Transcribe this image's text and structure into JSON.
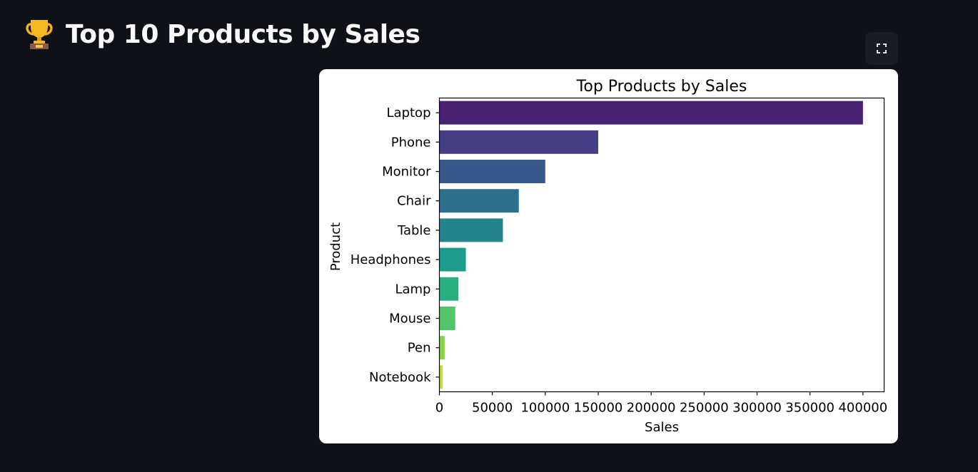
{
  "header": {
    "icon": "trophy-icon",
    "title": "Top 10 Products by Sales"
  },
  "toolbar": {
    "fullscreen_icon": "fullscreen-icon"
  },
  "chart_data": {
    "type": "bar",
    "orientation": "horizontal",
    "title": "Top Products by Sales",
    "xlabel": "Sales",
    "ylabel": "Product",
    "categories": [
      "Laptop",
      "Phone",
      "Monitor",
      "Chair",
      "Table",
      "Headphones",
      "Lamp",
      "Mouse",
      "Pen",
      "Notebook"
    ],
    "values": [
      400000,
      150000,
      100000,
      75000,
      60000,
      25000,
      18000,
      15000,
      5000,
      3000
    ],
    "xlim": [
      0,
      420000
    ],
    "xticks": [
      0,
      50000,
      100000,
      150000,
      200000,
      250000,
      300000,
      350000,
      400000
    ],
    "xtick_labels": [
      "0",
      "50000",
      "100000",
      "150000",
      "200000",
      "250000",
      "300000",
      "350000",
      "400000"
    ],
    "grid": false,
    "colors": [
      "#482173",
      "#433e85",
      "#38598c",
      "#2d708e",
      "#25858e",
      "#1e9b8a",
      "#2ab07f",
      "#52c569",
      "#86d549",
      "#c2df23"
    ]
  }
}
